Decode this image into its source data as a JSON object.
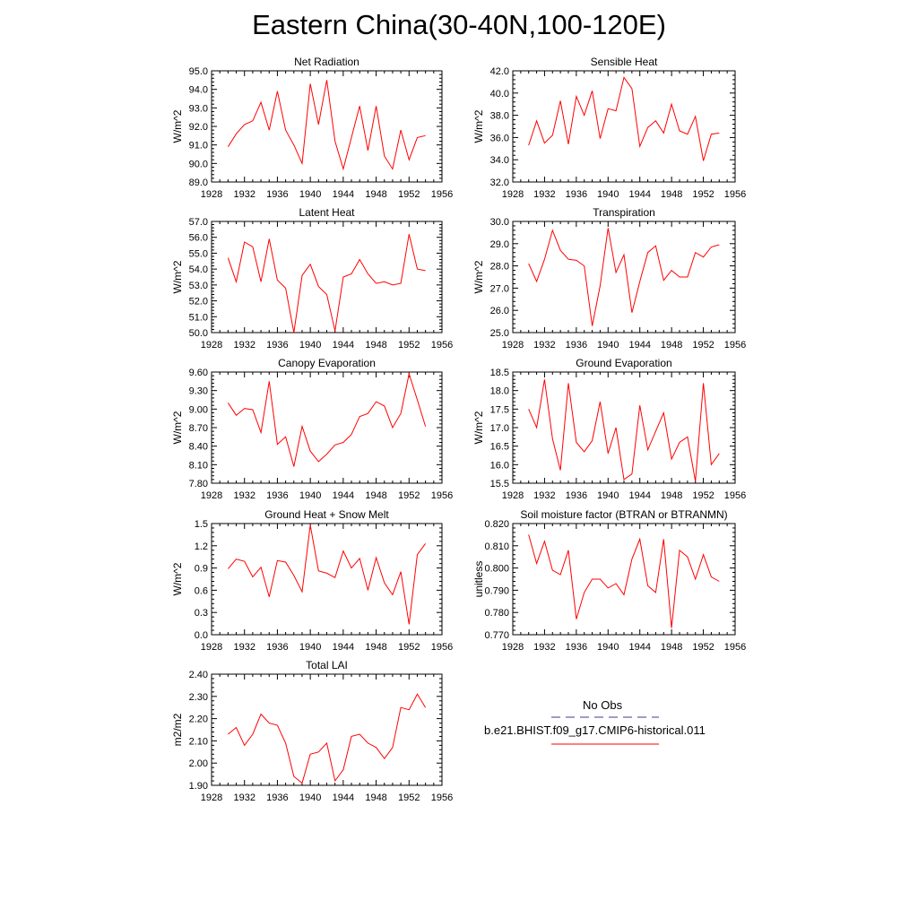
{
  "title": "Eastern China(30-40N,100-120E)",
  "legend": {
    "obs_label": "No Obs",
    "obs_color": "#3b3b8f",
    "model_label": "b.e21.BHIST.f09_g17.CMIP6-historical.011",
    "model_color": "#ff0000"
  },
  "chart_data": [
    {
      "type": "line",
      "title": "Net Radiation",
      "ylabel": "W/m^2",
      "xlim": [
        1928,
        1956
      ],
      "ylim": [
        89.0,
        95.0
      ],
      "xticks": [
        "1928",
        "1932",
        "1936",
        "1940",
        "1944",
        "1948",
        "1952",
        "1956"
      ],
      "yticks": [
        "89.0",
        "90.0",
        "91.0",
        "92.0",
        "93.0",
        "94.0",
        "95.0"
      ],
      "series": [
        {
          "x": [
            1930,
            1931,
            1932,
            1933,
            1934,
            1935,
            1936,
            1937,
            1938,
            1939,
            1940,
            1941,
            1942,
            1943,
            1944,
            1945,
            1946,
            1947,
            1948,
            1949,
            1950,
            1951,
            1952,
            1953,
            1954
          ],
          "y": [
            90.9,
            91.6,
            92.1,
            92.3,
            93.3,
            91.8,
            93.9,
            91.8,
            91.0,
            90.0,
            94.3,
            92.1,
            94.5,
            91.2,
            89.7,
            91.4,
            93.1,
            90.7,
            93.1,
            90.4,
            89.7,
            91.8,
            90.2,
            91.4,
            91.5
          ]
        }
      ]
    },
    {
      "type": "line",
      "title": "Sensible Heat",
      "ylabel": "W/m^2",
      "xlim": [
        1928,
        1956
      ],
      "ylim": [
        32.0,
        42.0
      ],
      "xticks": [
        "1928",
        "1932",
        "1936",
        "1940",
        "1944",
        "1948",
        "1952",
        "1956"
      ],
      "yticks": [
        "32.0",
        "34.0",
        "36.0",
        "38.0",
        "40.0",
        "42.0"
      ],
      "series": [
        {
          "x": [
            1930,
            1931,
            1932,
            1933,
            1934,
            1935,
            1936,
            1937,
            1938,
            1939,
            1940,
            1941,
            1942,
            1943,
            1944,
            1945,
            1946,
            1947,
            1948,
            1949,
            1950,
            1951,
            1952,
            1953,
            1954
          ],
          "y": [
            35.3,
            37.5,
            35.5,
            36.2,
            39.3,
            35.4,
            39.7,
            38.0,
            40.2,
            35.9,
            38.6,
            38.4,
            41.4,
            40.4,
            35.2,
            36.9,
            37.5,
            36.4,
            39.0,
            36.6,
            36.3,
            37.9,
            33.9,
            36.3,
            36.4
          ]
        }
      ]
    },
    {
      "type": "line",
      "title": "Latent Heat",
      "ylabel": "W/m^2",
      "xlim": [
        1928,
        1956
      ],
      "ylim": [
        50.0,
        57.0
      ],
      "xticks": [
        "1928",
        "1932",
        "1936",
        "1940",
        "1944",
        "1948",
        "1952",
        "1956"
      ],
      "yticks": [
        "50.0",
        "51.0",
        "52.0",
        "53.0",
        "54.0",
        "55.0",
        "56.0",
        "57.0"
      ],
      "series": [
        {
          "x": [
            1930,
            1931,
            1932,
            1933,
            1934,
            1935,
            1936,
            1937,
            1938,
            1939,
            1940,
            1941,
            1942,
            1943,
            1944,
            1945,
            1946,
            1947,
            1948,
            1949,
            1950,
            1951,
            1952,
            1953,
            1954
          ],
          "y": [
            54.7,
            53.2,
            55.7,
            55.4,
            53.2,
            55.9,
            53.3,
            52.8,
            50.0,
            53.6,
            54.3,
            52.9,
            52.4,
            50.1,
            53.5,
            53.7,
            54.6,
            53.7,
            53.1,
            53.2,
            53.0,
            53.1,
            56.2,
            54.0,
            53.9
          ]
        }
      ]
    },
    {
      "type": "line",
      "title": "Transpiration",
      "ylabel": "W/m^2",
      "xlim": [
        1928,
        1956
      ],
      "ylim": [
        25.0,
        30.0
      ],
      "xticks": [
        "1928",
        "1932",
        "1936",
        "1940",
        "1944",
        "1948",
        "1952",
        "1956"
      ],
      "yticks": [
        "25.0",
        "26.0",
        "27.0",
        "28.0",
        "29.0",
        "30.0"
      ],
      "series": [
        {
          "x": [
            1930,
            1931,
            1932,
            1933,
            1934,
            1935,
            1936,
            1937,
            1938,
            1939,
            1940,
            1941,
            1942,
            1943,
            1944,
            1945,
            1946,
            1947,
            1948,
            1949,
            1950,
            1951,
            1952,
            1953,
            1954
          ],
          "y": [
            28.1,
            27.3,
            28.3,
            29.6,
            28.7,
            28.3,
            28.25,
            28.0,
            25.3,
            27.1,
            29.7,
            27.7,
            28.5,
            25.9,
            27.3,
            28.6,
            28.9,
            27.35,
            27.8,
            27.5,
            27.5,
            28.6,
            28.4,
            28.85,
            28.95
          ]
        }
      ]
    },
    {
      "type": "line",
      "title": "Canopy Evaporation",
      "ylabel": "W/m^2",
      "xlim": [
        1928,
        1956
      ],
      "ylim": [
        7.8,
        9.6
      ],
      "xticks": [
        "1928",
        "1932",
        "1936",
        "1940",
        "1944",
        "1948",
        "1952",
        "1956"
      ],
      "yticks": [
        "7.80",
        "8.10",
        "8.40",
        "8.70",
        "9.00",
        "9.30",
        "9.60"
      ],
      "series": [
        {
          "x": [
            1930,
            1931,
            1932,
            1933,
            1934,
            1935,
            1936,
            1937,
            1938,
            1939,
            1940,
            1941,
            1942,
            1943,
            1944,
            1945,
            1946,
            1947,
            1948,
            1949,
            1950,
            1951,
            1952,
            1953,
            1954
          ],
          "y": [
            9.1,
            8.9,
            9.01,
            8.99,
            8.62,
            9.45,
            8.43,
            8.55,
            8.07,
            8.72,
            8.32,
            8.15,
            8.27,
            8.42,
            8.46,
            8.59,
            8.88,
            8.93,
            9.12,
            9.05,
            8.7,
            8.93,
            9.57,
            9.15,
            8.72
          ]
        }
      ]
    },
    {
      "type": "line",
      "title": "Ground Evaporation",
      "ylabel": "W/m^2",
      "xlim": [
        1928,
        1956
      ],
      "ylim": [
        15.5,
        18.5
      ],
      "xticks": [
        "1928",
        "1932",
        "1936",
        "1940",
        "1944",
        "1948",
        "1952",
        "1956"
      ],
      "yticks": [
        "15.5",
        "16.0",
        "16.5",
        "17.0",
        "17.5",
        "18.0",
        "18.5"
      ],
      "series": [
        {
          "x": [
            1930,
            1931,
            1932,
            1933,
            1934,
            1935,
            1936,
            1937,
            1938,
            1939,
            1940,
            1941,
            1942,
            1943,
            1944,
            1945,
            1946,
            1947,
            1948,
            1949,
            1950,
            1951,
            1952,
            1953,
            1954
          ],
          "y": [
            17.5,
            17.0,
            18.3,
            16.7,
            15.85,
            18.2,
            16.6,
            16.35,
            16.65,
            17.7,
            16.3,
            17.0,
            15.6,
            15.75,
            17.6,
            16.4,
            16.9,
            17.4,
            16.15,
            16.6,
            16.75,
            15.55,
            18.2,
            16.0,
            16.3
          ]
        }
      ]
    },
    {
      "type": "line",
      "title": "Ground Heat + Snow Melt",
      "ylabel": "W/m^2",
      "xlim": [
        1928,
        1956
      ],
      "ylim": [
        0.0,
        1.5
      ],
      "xticks": [
        "1928",
        "1932",
        "1936",
        "1940",
        "1944",
        "1948",
        "1952",
        "1956"
      ],
      "yticks": [
        "0.0",
        "0.3",
        "0.6",
        "0.9",
        "1.2",
        "1.5"
      ],
      "series": [
        {
          "x": [
            1930,
            1931,
            1932,
            1933,
            1934,
            1935,
            1936,
            1937,
            1938,
            1939,
            1940,
            1941,
            1942,
            1943,
            1944,
            1945,
            1946,
            1947,
            1948,
            1949,
            1950,
            1951,
            1952,
            1953,
            1954
          ],
          "y": [
            0.89,
            1.02,
            0.99,
            0.78,
            0.91,
            0.51,
            1.0,
            0.98,
            0.8,
            0.58,
            1.48,
            0.86,
            0.83,
            0.77,
            1.13,
            0.9,
            1.03,
            0.6,
            1.04,
            0.7,
            0.54,
            0.85,
            0.14,
            1.08,
            1.23
          ]
        }
      ]
    },
    {
      "type": "line",
      "title": "Soil moisture factor (BTRAN or BTRANMN)",
      "ylabel": "unitless",
      "xlim": [
        1928,
        1956
      ],
      "ylim": [
        0.77,
        0.82
      ],
      "xticks": [
        "1928",
        "1932",
        "1936",
        "1940",
        "1944",
        "1948",
        "1952",
        "1956"
      ],
      "yticks": [
        "0.770",
        "0.780",
        "0.790",
        "0.800",
        "0.810",
        "0.820"
      ],
      "series": [
        {
          "x": [
            1930,
            1931,
            1932,
            1933,
            1934,
            1935,
            1936,
            1937,
            1938,
            1939,
            1940,
            1941,
            1942,
            1943,
            1944,
            1945,
            1946,
            1947,
            1948,
            1949,
            1950,
            1951,
            1952,
            1953,
            1954
          ],
          "y": [
            0.815,
            0.802,
            0.812,
            0.799,
            0.797,
            0.808,
            0.777,
            0.789,
            0.795,
            0.795,
            0.791,
            0.793,
            0.788,
            0.804,
            0.813,
            0.792,
            0.789,
            0.813,
            0.773,
            0.808,
            0.805,
            0.795,
            0.806,
            0.796,
            0.794
          ]
        }
      ]
    },
    {
      "type": "line",
      "title": "Total LAI",
      "ylabel": "m2/m2",
      "xlim": [
        1928,
        1956
      ],
      "ylim": [
        1.9,
        2.4
      ],
      "xticks": [
        "1928",
        "1932",
        "1936",
        "1940",
        "1944",
        "1948",
        "1952",
        "1956"
      ],
      "yticks": [
        "1.90",
        "2.00",
        "2.10",
        "2.20",
        "2.30",
        "2.40"
      ],
      "series": [
        {
          "x": [
            1930,
            1931,
            1932,
            1933,
            1934,
            1935,
            1936,
            1937,
            1938,
            1939,
            1940,
            1941,
            1942,
            1943,
            1944,
            1945,
            1946,
            1947,
            1948,
            1949,
            1950,
            1951,
            1952,
            1953,
            1954
          ],
          "y": [
            2.13,
            2.16,
            2.08,
            2.13,
            2.22,
            2.18,
            2.17,
            2.09,
            1.94,
            1.91,
            2.04,
            2.05,
            2.09,
            1.92,
            1.97,
            2.12,
            2.13,
            2.09,
            2.07,
            2.02,
            2.07,
            2.25,
            2.24,
            2.31,
            2.25
          ]
        }
      ]
    }
  ]
}
